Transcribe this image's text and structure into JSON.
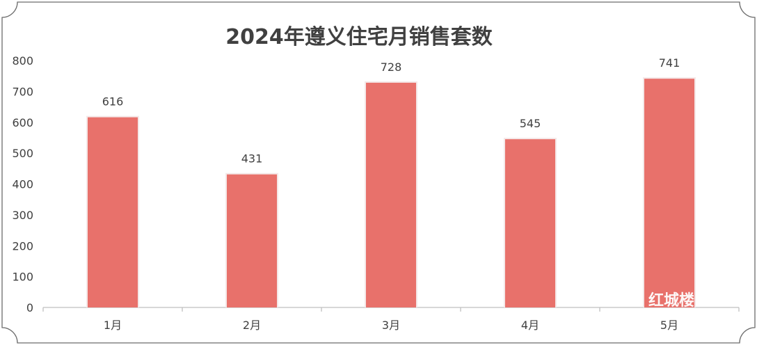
{
  "chart_data": {
    "type": "bar",
    "title": "2024年遵义住宅月销售套数",
    "categories": [
      "1月",
      "2月",
      "3月",
      "4月",
      "5月"
    ],
    "values": [
      616,
      431,
      728,
      545,
      741
    ],
    "data_labels": [
      "616",
      "431",
      "728",
      "545",
      "741"
    ],
    "ylim": [
      0,
      800
    ],
    "yticks": [
      "0",
      "100",
      "200",
      "300",
      "400",
      "500",
      "600",
      "700",
      "800"
    ],
    "xlabel": "",
    "ylabel": "",
    "grid": false,
    "legend": "none",
    "bar_color": "#e8716b"
  },
  "watermark": "红城楼"
}
